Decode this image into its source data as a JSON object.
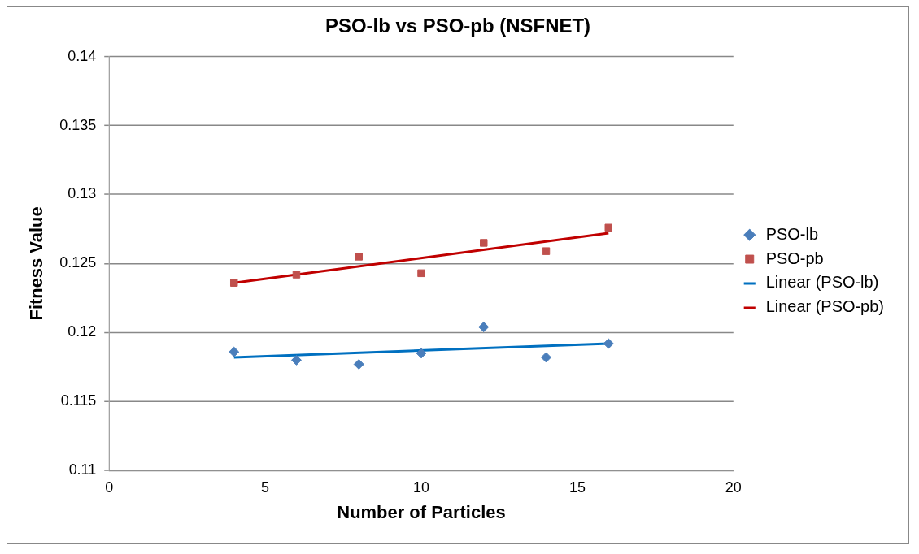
{
  "chart_data": {
    "type": "scatter",
    "title": "PSO-lb vs PSO-pb (NSFNET)",
    "xlabel": "Number of Particles",
    "ylabel": "Fitness Value",
    "xlim": [
      0,
      20
    ],
    "xticks": [
      0,
      5,
      10,
      15,
      20
    ],
    "ylim": [
      0.11,
      0.14
    ],
    "yticks": [
      0.11,
      0.115,
      0.12,
      0.125,
      0.13,
      0.135,
      0.14
    ],
    "grid": "y",
    "legend": "right",
    "series": [
      {
        "name": "PSO-lb",
        "type": "scatter",
        "marker": "diamond",
        "color": "#4a7ebb",
        "x": [
          4,
          6,
          8,
          10,
          12,
          14,
          16
        ],
        "values": [
          0.1186,
          0.118,
          0.1177,
          0.1185,
          0.1204,
          0.1182,
          0.1192
        ]
      },
      {
        "name": "PSO-pb",
        "type": "scatter",
        "marker": "square",
        "color": "#c0504d",
        "x": [
          4,
          6,
          8,
          10,
          12,
          14,
          16
        ],
        "values": [
          0.1236,
          0.1242,
          0.1255,
          0.1243,
          0.1265,
          0.1259,
          0.1276
        ]
      },
      {
        "name": "Linear (PSO-lb)",
        "type": "line",
        "marker": "none",
        "color": "#0070c0",
        "x": [
          4,
          16
        ],
        "values": [
          0.1182,
          0.1192
        ]
      },
      {
        "name": "Linear (PSO-pb)",
        "type": "line",
        "marker": "none",
        "color": "#c00000",
        "x": [
          4,
          16
        ],
        "values": [
          0.1236,
          0.1272
        ]
      }
    ]
  }
}
